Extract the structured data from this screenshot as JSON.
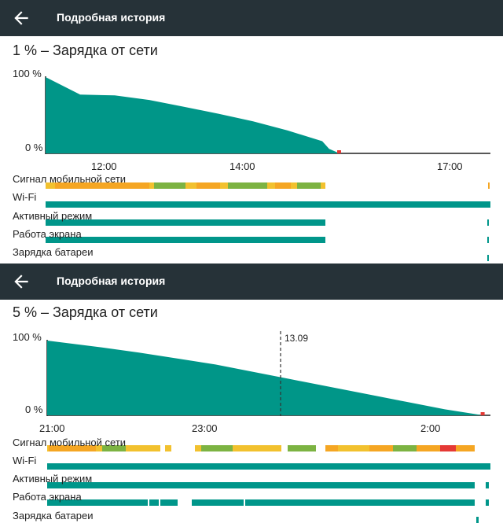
{
  "colors": {
    "appbar": "#263238",
    "battery_fill": "#009688",
    "lane_active": "#00968a",
    "signal_orange": "#f5a623",
    "signal_yellow": "#f2c12e",
    "signal_green": "#7cb342",
    "signal_red": "#e53935"
  },
  "icons": {
    "back": "arrow-back-icon"
  },
  "screens": [
    {
      "app_bar_title": "Подробная история",
      "headline": "1 % – Зарядка от сети",
      "y_ticks": [
        "100 %",
        "0 %"
      ],
      "x_ticks": [
        "12:00",
        "14:00",
        "17:00"
      ],
      "lanes": [
        "Сигнал мобильной сети",
        "Wi-Fi",
        "Активный режим",
        "Работа экрана",
        "Зарядка батареи"
      ],
      "chart_data": {
        "type": "area",
        "x_unit": "hours",
        "x": [
          11.0,
          11.5,
          12.0,
          12.5,
          13.0,
          13.5,
          14.0,
          14.5,
          15.0,
          15.1,
          15.25
        ],
        "y": [
          100,
          77,
          76,
          70,
          61,
          52,
          42,
          30,
          16,
          6,
          0
        ],
        "ylim": [
          0,
          100
        ],
        "ytick_labels": [
          "100 %",
          "0 %"
        ],
        "xtick_labels": [
          "12:00",
          "14:00",
          "17:00"
        ]
      }
    },
    {
      "app_bar_title": "Подробная история",
      "headline": "5 % – Зарядка от сети",
      "y_ticks": [
        "100 %",
        "0 %"
      ],
      "x_ticks": [
        "21:00",
        "23:00",
        "2:00"
      ],
      "marker": "13.09",
      "lanes": [
        "Сигнал мобильной сети",
        "Wi-Fi",
        "Активный режим",
        "Работа экрана",
        "Зарядка батареи"
      ],
      "chart_data": {
        "type": "area",
        "x_unit": "hours",
        "x": [
          20.8,
          21.5,
          22.0,
          22.5,
          23.0,
          23.5,
          24.0,
          24.5,
          25.0,
          25.5,
          26.0,
          26.5
        ],
        "y": [
          100,
          91,
          84,
          76,
          68,
          58,
          48,
          38,
          28,
          18,
          8,
          0
        ],
        "ylim": [
          0,
          100
        ],
        "ytick_labels": [
          "100 %",
          "0 %"
        ],
        "xtick_labels": [
          "21:00",
          "23:00",
          "2:00"
        ]
      }
    }
  ]
}
